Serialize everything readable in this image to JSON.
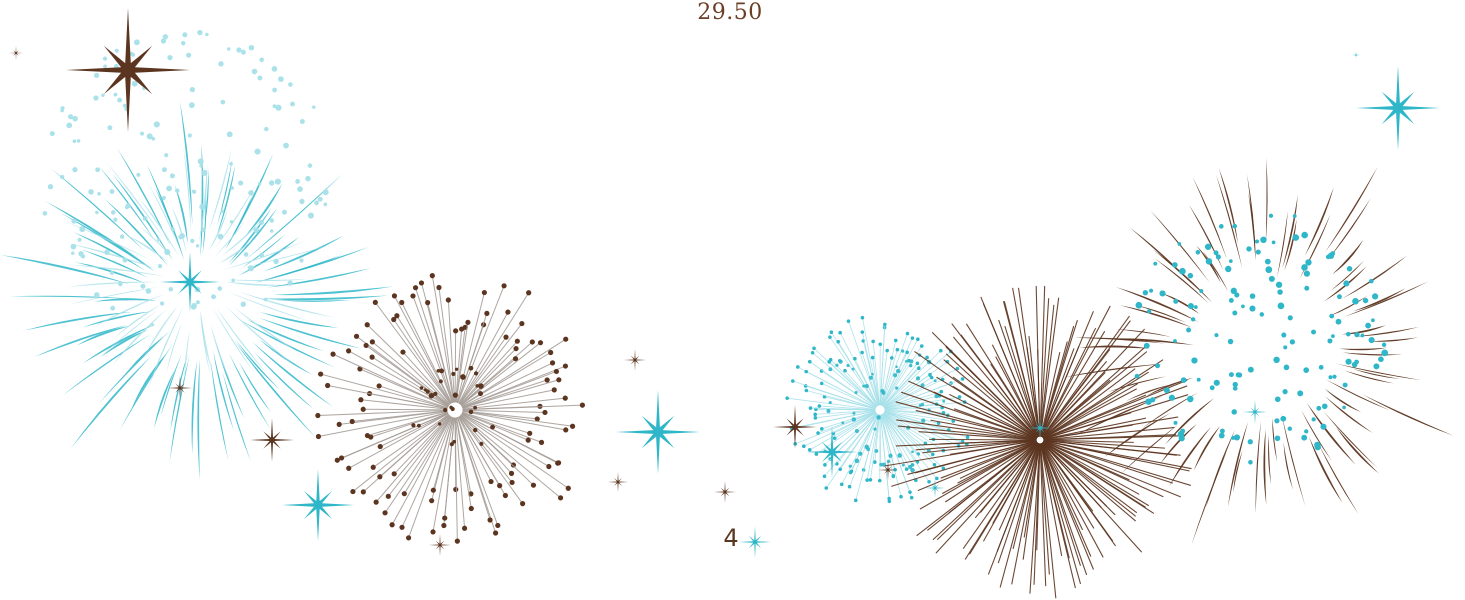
{
  "price_text": "29.50",
  "page_number": "4",
  "colors": {
    "brown": "#5c3520",
    "teal": "#2fb7c9",
    "light_teal": "#a6e0e9",
    "grey": "#a69d97"
  },
  "decoration": {
    "style": "fireworks",
    "bursts": [
      {
        "name": "teal-streak-burst-left",
        "color": "teal"
      },
      {
        "name": "light-teal-dot-burst-left",
        "color": "light_teal"
      },
      {
        "name": "brown-grey-dandelion-burst",
        "color": "brown"
      },
      {
        "name": "teal-fine-burst",
        "color": "teal"
      },
      {
        "name": "brown-line-burst",
        "color": "brown"
      },
      {
        "name": "brown-streak-teal-dot-burst-right",
        "color": "brown"
      }
    ]
  }
}
